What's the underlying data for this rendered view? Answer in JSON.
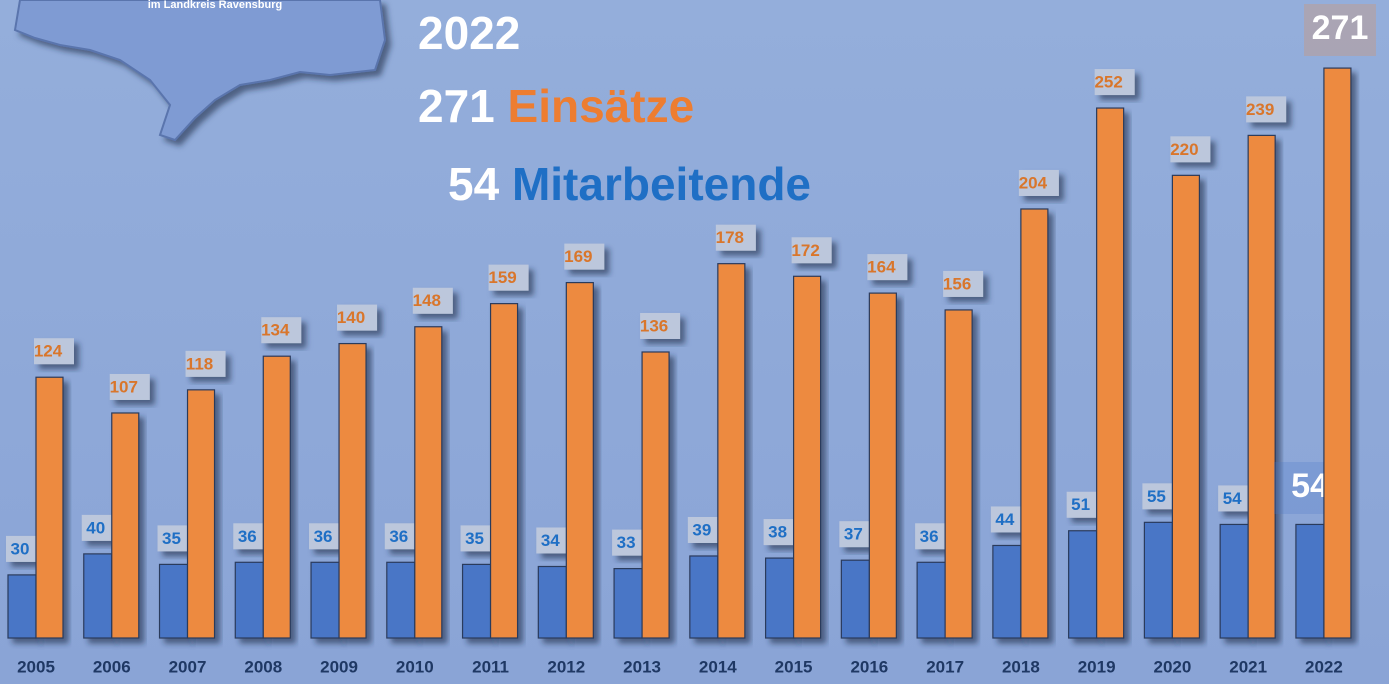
{
  "chart_data": {
    "type": "bar",
    "logo_text": "im Landkreis Ravensburg",
    "headline": {
      "year": "2022",
      "lines": [
        {
          "number": "271",
          "label": "Einsätze"
        },
        {
          "number": "54",
          "label": "Mitarbeitende"
        }
      ]
    },
    "categories": [
      "2005",
      "2006",
      "2007",
      "2008",
      "2009",
      "2010",
      "2011",
      "2012",
      "2013",
      "2014",
      "2015",
      "2016",
      "2017",
      "2018",
      "2019",
      "2020",
      "2021",
      "2022"
    ],
    "series": [
      {
        "color": "#4a76c6",
        "label_color": "#1f6fc5",
        "values": [
          30,
          40,
          35,
          36,
          36,
          36,
          35,
          34,
          33,
          39,
          38,
          37,
          36,
          44,
          51,
          55,
          54,
          54
        ]
      },
      {
        "color": "#ed8a3f",
        "label_color": "#d9762b",
        "values": [
          124,
          107,
          118,
          134,
          140,
          148,
          159,
          169,
          136,
          178,
          172,
          164,
          156,
          204,
          252,
          220,
          239,
          271
        ]
      }
    ]
  }
}
